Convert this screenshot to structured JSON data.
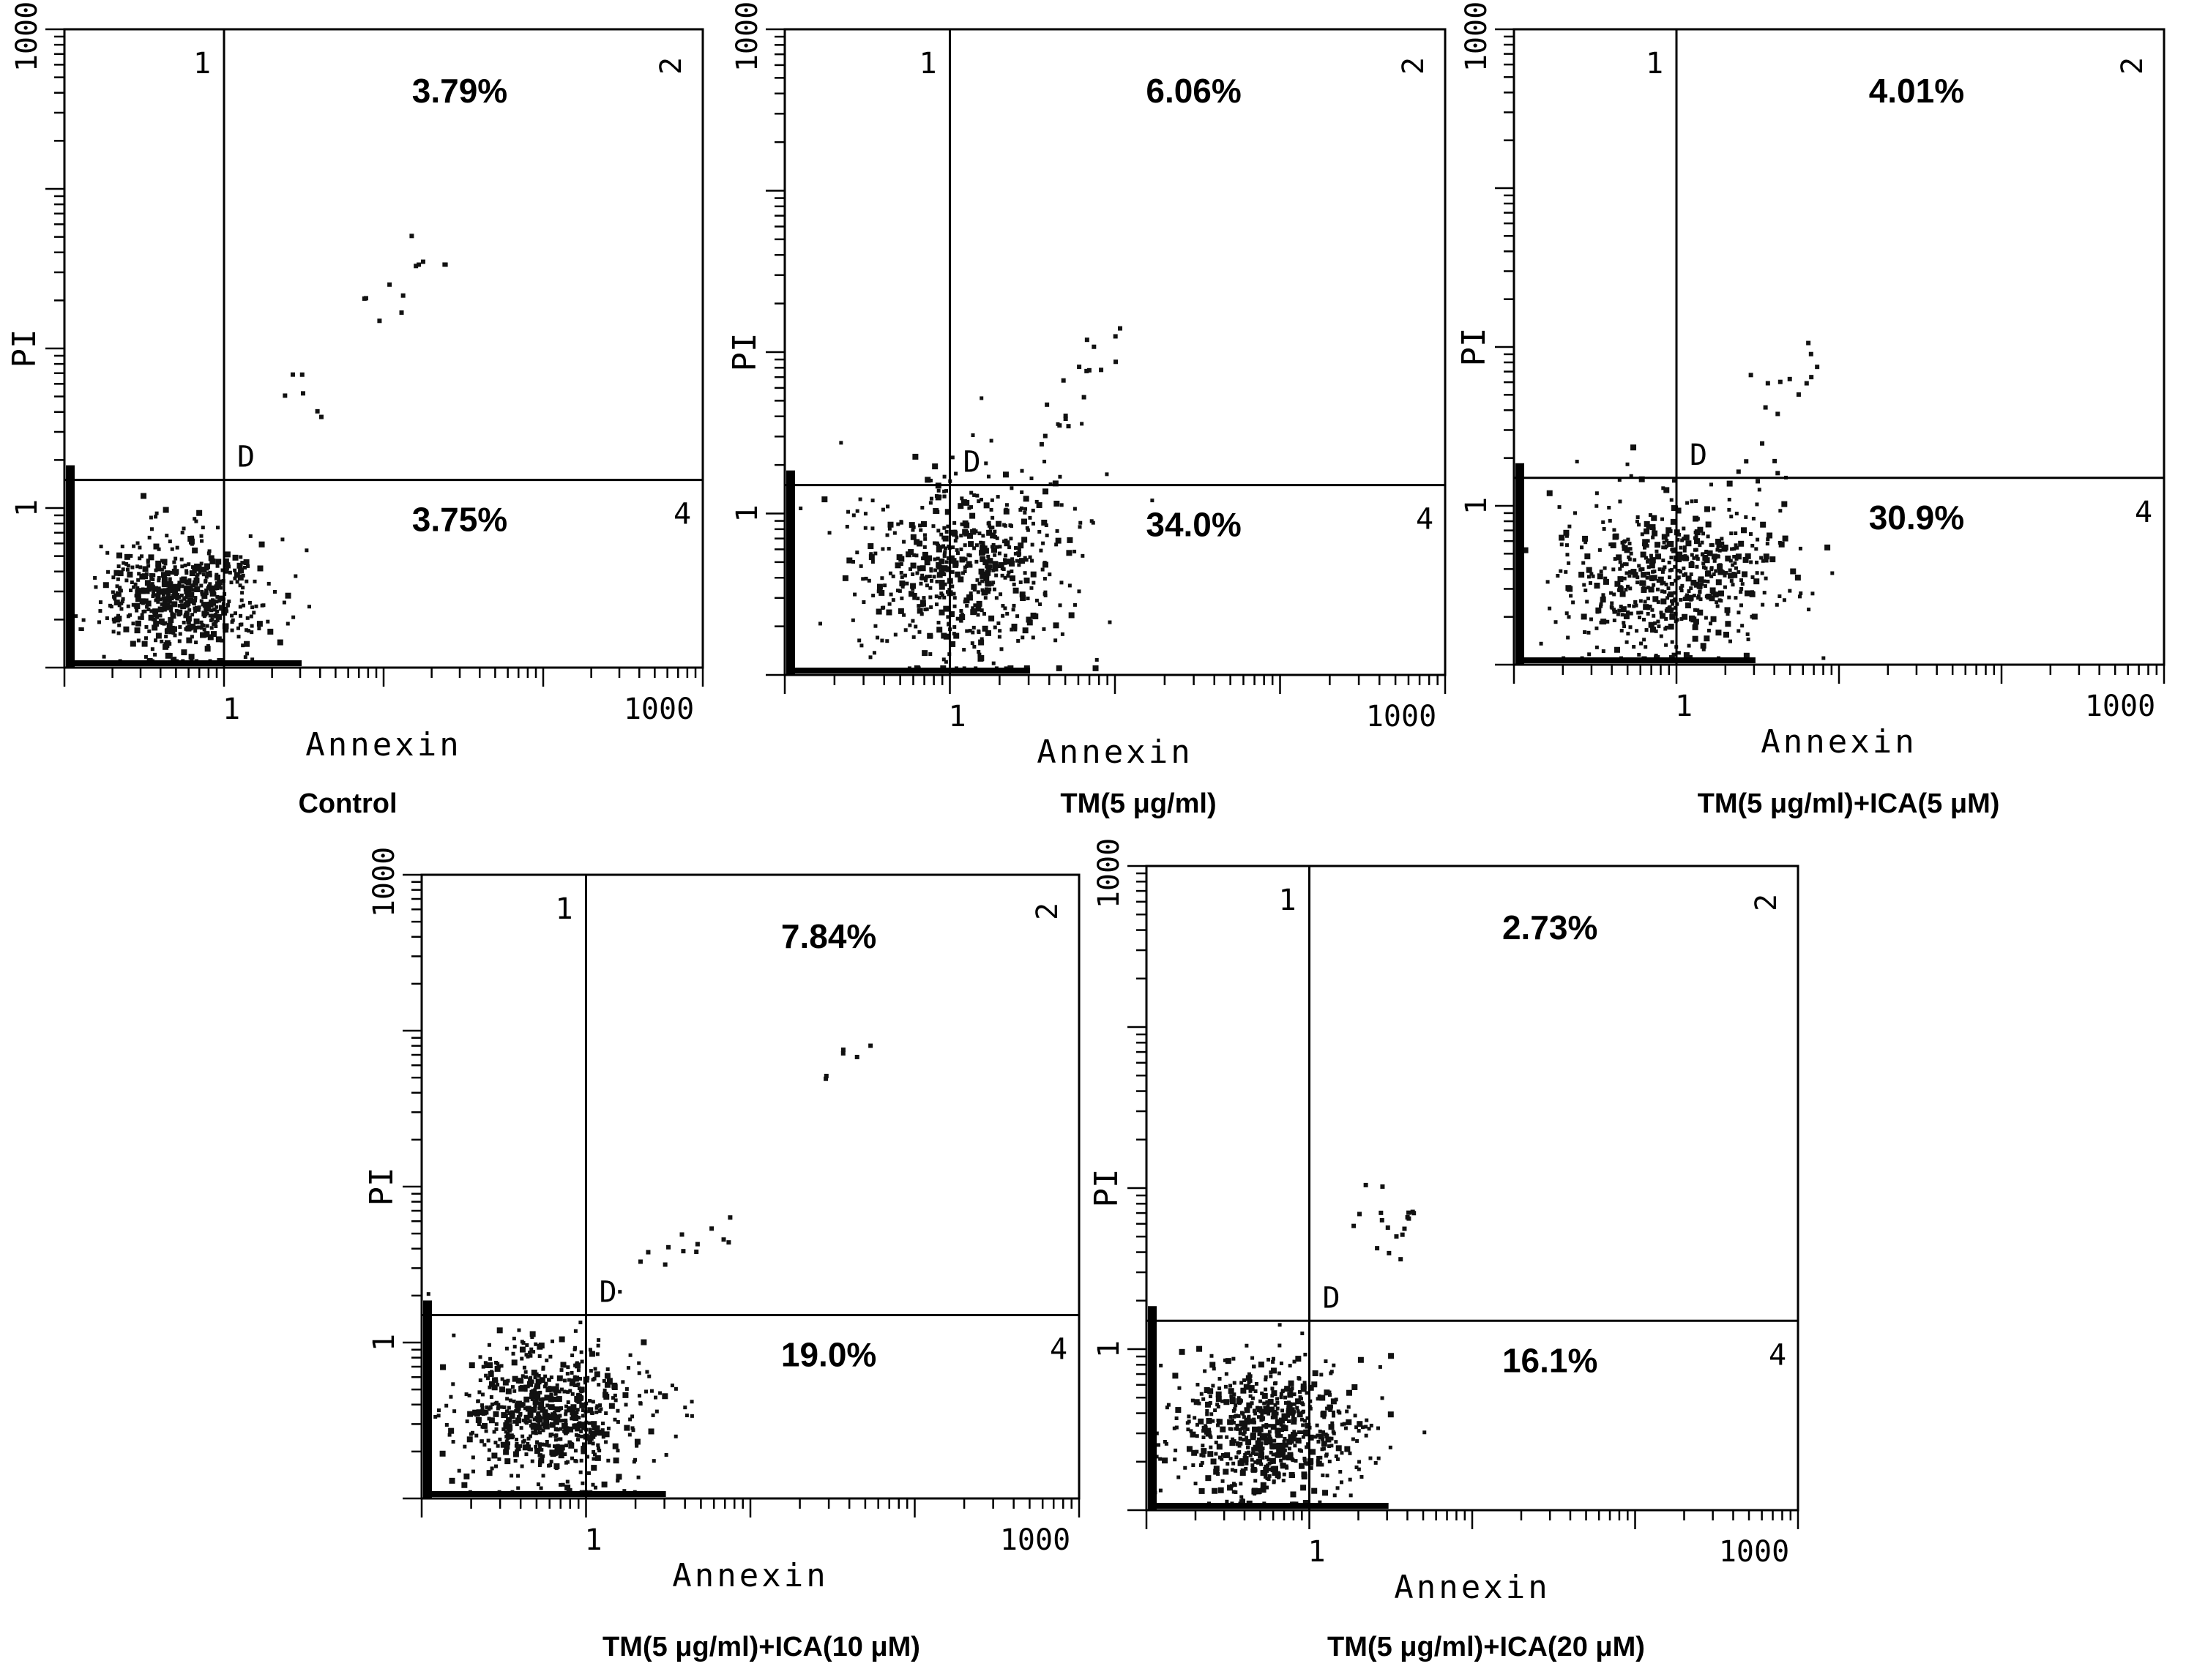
{
  "figure": {
    "panels": [
      {
        "caption": "Control",
        "upper_right_pct": "3.79%",
        "lower_right_pct": "3.75%"
      },
      {
        "caption": "TM(5 μg/ml)",
        "upper_right_pct": "6.06%",
        "lower_right_pct": "34.0%"
      },
      {
        "caption": "TM(5 μg/ml)+ICA(5 μM)",
        "upper_right_pct": "4.01%",
        "lower_right_pct": "30.9%"
      },
      {
        "caption": "TM(5 μg/ml)+ICA(10 μM)",
        "upper_right_pct": "7.84%",
        "lower_right_pct": "19.0%"
      },
      {
        "caption": "TM(5 μg/ml)+ICA(20 μM)",
        "upper_right_pct": "2.73%",
        "lower_right_pct": "16.1%"
      }
    ]
  },
  "chart_data": [
    {
      "type": "scatter",
      "xlabel": "Annexin",
      "ylabel": "PI",
      "xscale": "log",
      "yscale": "log",
      "xlim": [
        0.1,
        1000
      ],
      "ylim": [
        0.1,
        1000
      ],
      "x_tick_labels": [
        "1",
        "1000"
      ],
      "y_tick_labels": [
        "1",
        "1000"
      ],
      "quadrant_labels": [
        "1",
        "2",
        "4"
      ],
      "gate_x": 1,
      "gate_y": 1.5,
      "marker": "D",
      "caption": "Control",
      "quadrant_percent": {
        "upper_right": "3.79%",
        "lower_right": "3.75%"
      },
      "density": {
        "center": [
          0.55,
          0.28
        ],
        "spread": [
          0.25,
          0.18
        ],
        "count": 600,
        "tail": [
          [
            3,
            5
          ],
          [
            10,
            20
          ],
          [
            20,
            40
          ]
        ]
      }
    },
    {
      "type": "scatter",
      "xlabel": "Annexin",
      "ylabel": "PI",
      "xscale": "log",
      "yscale": "log",
      "xlim": [
        0.1,
        1000
      ],
      "ylim": [
        0.1,
        1000
      ],
      "x_tick_labels": [
        "1",
        "1000"
      ],
      "y_tick_labels": [
        "1",
        "1000"
      ],
      "quadrant_labels": [
        "1",
        "2",
        "4"
      ],
      "gate_x": 1,
      "gate_y": 1.5,
      "marker": "D",
      "caption": "TM(5 μg/ml)",
      "quadrant_percent": {
        "upper_right": "6.06%",
        "lower_right": "34.0%"
      },
      "density": {
        "center": [
          1.2,
          0.45
        ],
        "spread": [
          0.35,
          0.3
        ],
        "count": 600,
        "tail": [
          [
            5,
            6
          ],
          [
            8,
            10
          ],
          [
            4,
            3
          ]
        ]
      }
    },
    {
      "type": "scatter",
      "xlabel": "Annexin",
      "ylabel": "PI",
      "xscale": "log",
      "yscale": "log",
      "xlim": [
        0.1,
        1000
      ],
      "ylim": [
        0.1,
        1000
      ],
      "x_tick_labels": [
        "1",
        "1000"
      ],
      "y_tick_labels": [
        "1",
        "1000"
      ],
      "quadrant_labels": [
        "1",
        "2",
        "4"
      ],
      "gate_x": 1,
      "gate_y": 1.5,
      "marker": "D",
      "caption": "TM(5 μg/ml)+ICA(5 μM)",
      "quadrant_percent": {
        "upper_right": "4.01%",
        "lower_right": "30.9%"
      },
      "density": {
        "center": [
          0.9,
          0.35
        ],
        "spread": [
          0.35,
          0.25
        ],
        "count": 600,
        "tail": [
          [
            4,
            5
          ],
          [
            6,
            8
          ],
          [
            3,
            2
          ]
        ]
      }
    },
    {
      "type": "scatter",
      "xlabel": "Annexin",
      "ylabel": "PI",
      "xscale": "log",
      "yscale": "log",
      "xlim": [
        0.1,
        1000
      ],
      "ylim": [
        0.1,
        1000
      ],
      "x_tick_labels": [
        "1",
        "1000"
      ],
      "y_tick_labels": [
        "1",
        "1000"
      ],
      "quadrant_labels": [
        "1",
        "2",
        "4"
      ],
      "gate_x": 1,
      "gate_y": 1.5,
      "marker": "D",
      "caption": "TM(5 μg/ml)+ICA(10 μM)",
      "quadrant_percent": {
        "upper_right": "7.84%",
        "lower_right": "19.0%"
      },
      "density": {
        "center": [
          0.6,
          0.35
        ],
        "spread": [
          0.28,
          0.22
        ],
        "count": 700,
        "tail": [
          [
            3,
            4
          ],
          [
            6,
            5
          ],
          [
            40,
            60
          ]
        ]
      }
    },
    {
      "type": "scatter",
      "xlabel": "Annexin",
      "ylabel": "PI",
      "xscale": "log",
      "yscale": "log",
      "xlim": [
        0.1,
        1000
      ],
      "ylim": [
        0.1,
        1000
      ],
      "x_tick_labels": [
        "1",
        "1000"
      ],
      "y_tick_labels": [
        "1",
        "1000"
      ],
      "quadrant_labels": [
        "1",
        "2",
        "4"
      ],
      "gate_x": 1,
      "gate_y": 1.5,
      "marker": "D",
      "caption": "TM(5 μg/ml)+ICA(20 μM)",
      "quadrant_percent": {
        "upper_right": "2.73%",
        "lower_right": "16.1%"
      },
      "density": {
        "center": [
          0.55,
          0.32
        ],
        "spread": [
          0.28,
          0.22
        ],
        "count": 700,
        "tail": [
          [
            3,
            4
          ],
          [
            4,
            6
          ],
          [
            2,
            8
          ]
        ]
      }
    }
  ]
}
